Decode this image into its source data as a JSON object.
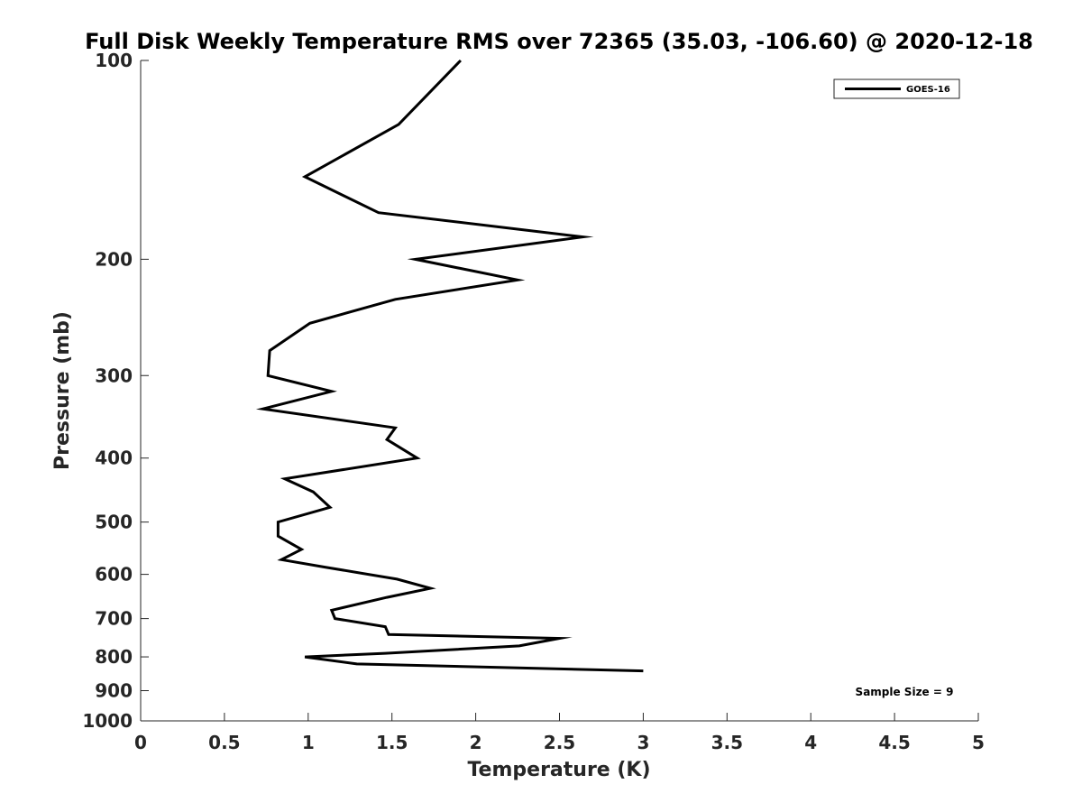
{
  "chart_data": {
    "type": "line",
    "title": "Full Disk Weekly Temperature RMS over 72365 (35.03, -106.60) @ 2020-12-18",
    "xlabel": "Temperature (K)",
    "ylabel": "Pressure (mb)",
    "xlim": [
      0,
      5
    ],
    "ylim": [
      100,
      1000
    ],
    "y_scale": "log",
    "y_reversed": true,
    "xticks": [
      "0",
      "0.5",
      "1",
      "1.5",
      "2",
      "2.5",
      "3",
      "3.5",
      "4",
      "4.5",
      "5"
    ],
    "yticks": [
      "100",
      "200",
      "300",
      "400",
      "500",
      "600",
      "700",
      "800",
      "900",
      "1000"
    ],
    "grid": false,
    "legend_position": "top-right",
    "annotation": "Sample Size = 9",
    "series": [
      {
        "name": "GOES-16",
        "color": "#000000",
        "points": [
          {
            "x": 1.91,
            "y": 100
          },
          {
            "x": 1.54,
            "y": 125
          },
          {
            "x": 0.98,
            "y": 150
          },
          {
            "x": 1.42,
            "y": 170
          },
          {
            "x": 2.64,
            "y": 185
          },
          {
            "x": 1.64,
            "y": 200
          },
          {
            "x": 2.25,
            "y": 215
          },
          {
            "x": 1.52,
            "y": 230
          },
          {
            "x": 1.01,
            "y": 250
          },
          {
            "x": 0.77,
            "y": 275
          },
          {
            "x": 0.76,
            "y": 300
          },
          {
            "x": 1.14,
            "y": 317
          },
          {
            "x": 0.73,
            "y": 337
          },
          {
            "x": 1.52,
            "y": 360
          },
          {
            "x": 1.47,
            "y": 375
          },
          {
            "x": 1.65,
            "y": 400
          },
          {
            "x": 0.86,
            "y": 430
          },
          {
            "x": 1.03,
            "y": 450
          },
          {
            "x": 1.13,
            "y": 475
          },
          {
            "x": 0.82,
            "y": 500
          },
          {
            "x": 0.82,
            "y": 525
          },
          {
            "x": 0.96,
            "y": 550
          },
          {
            "x": 0.84,
            "y": 570
          },
          {
            "x": 1.1,
            "y": 585
          },
          {
            "x": 1.53,
            "y": 610
          },
          {
            "x": 1.73,
            "y": 630
          },
          {
            "x": 1.47,
            "y": 650
          },
          {
            "x": 1.14,
            "y": 680
          },
          {
            "x": 1.16,
            "y": 700
          },
          {
            "x": 1.46,
            "y": 720
          },
          {
            "x": 1.48,
            "y": 740
          },
          {
            "x": 2.5,
            "y": 750
          },
          {
            "x": 2.26,
            "y": 770
          },
          {
            "x": 1.46,
            "y": 790
          },
          {
            "x": 0.98,
            "y": 800
          },
          {
            "x": 1.29,
            "y": 820
          },
          {
            "x": 3.0,
            "y": 840
          }
        ]
      }
    ]
  }
}
